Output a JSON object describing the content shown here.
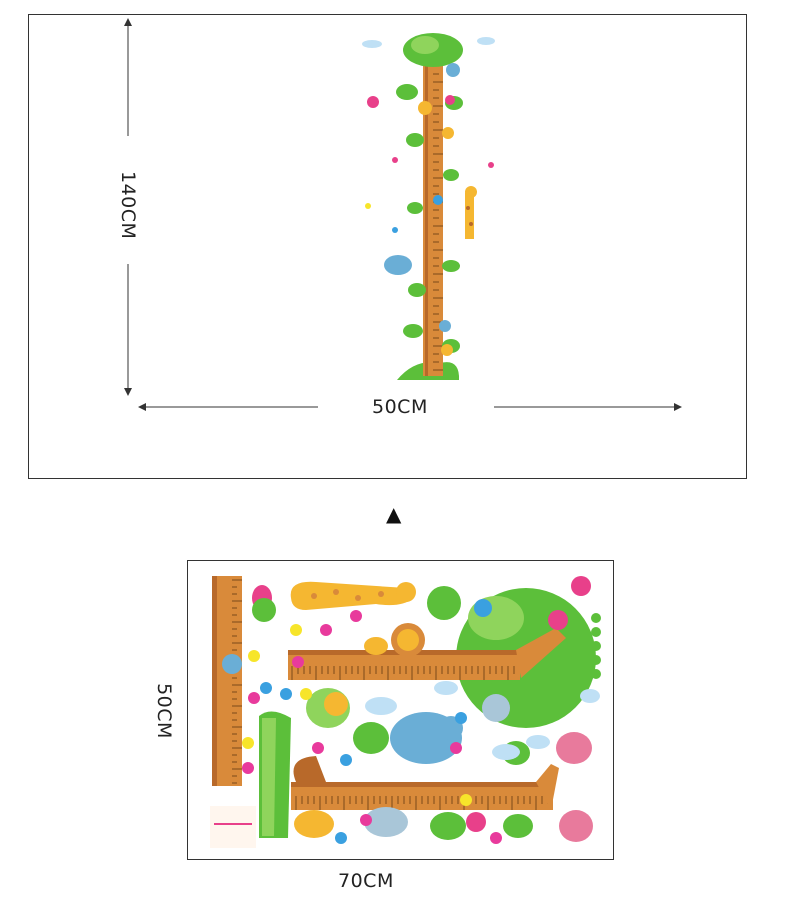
{
  "top_panel": {
    "height_label": "140CM",
    "width_label": "50CM"
  },
  "arrow_glyph": "▲",
  "bottom_panel": {
    "height_label": "50CM",
    "width_label": "70CM"
  },
  "colors": {
    "trunk": "#d98a3a",
    "trunk_dark": "#b8692a",
    "leaf": "#5cbf3a",
    "leaf_light": "#8fd45c",
    "giraffe": "#f5b731",
    "elephant": "#6aaed6",
    "bird_red": "#e8408a",
    "flower_blue": "#3aa0e0",
    "flower_yellow": "#f7e52a",
    "flower_pink": "#e83a9c",
    "cloud": "#bfe0f5"
  }
}
